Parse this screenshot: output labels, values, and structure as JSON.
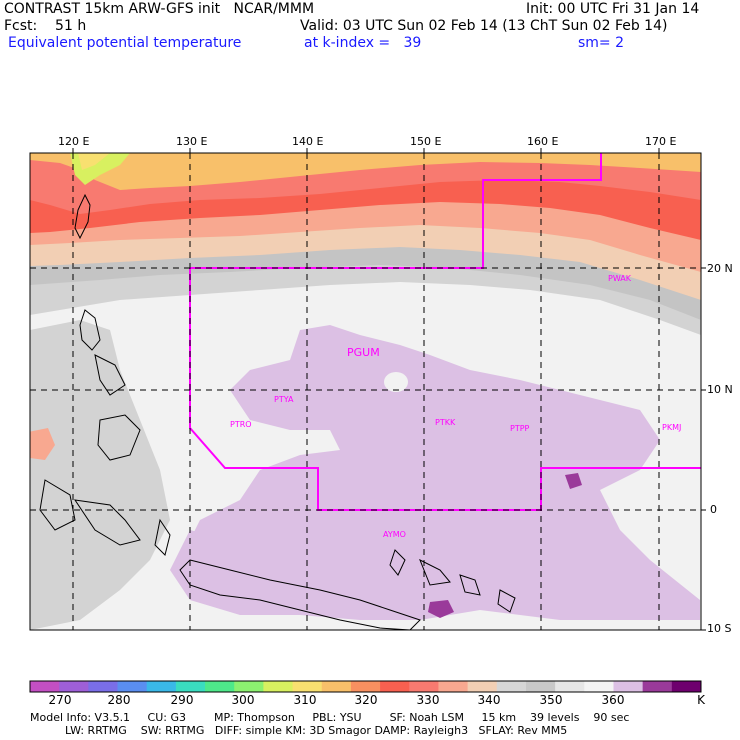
{
  "header": {
    "line1_left": "CONTRAST 15km ARW-GFS init   NCAR/MMM",
    "line1_right": "Init: 00 UTC Fri 31 Jan 14",
    "line2_left": "Fcst:    51 h",
    "line2_right": "Valid: 03 UTC Sun 02 Feb 14 (13 ChT Sun 02 Feb 14)",
    "line3_left": "Equivalent potential temperature",
    "line3_mid": "at k-index =   39",
    "line3_right": "sm= 2"
  },
  "lon_labels": [
    "120 E",
    "130 E",
    "140 E",
    "150 E",
    "160 E",
    "170 E"
  ],
  "lat_labels": [
    "20 N",
    "10 N",
    "0",
    "10 S"
  ],
  "stations": [
    "PGUM",
    "PTYA",
    "PTRO",
    "PTKK",
    "PTPP",
    "PKMJ",
    "PWAK",
    "AYMO"
  ],
  "colorbar": {
    "labels": [
      "270",
      "280",
      "290",
      "300",
      "310",
      "320",
      "330",
      "340",
      "350",
      "360"
    ],
    "unit": "K",
    "colors": [
      "#c34fc3",
      "#9e5fd8",
      "#7a6ee8",
      "#5a8ef0",
      "#3ab8e8",
      "#3adcc0",
      "#4ee88a",
      "#8cf070",
      "#d8f060",
      "#f8e070",
      "#f8c06a",
      "#f89060",
      "#f86050",
      "#f87a70",
      "#f8a890",
      "#f2cfb4",
      "#d6d6d6",
      "#c8c8c8",
      "#e6e6e6",
      "#f4f4f4",
      "#dcc0e4",
      "#9a3a9a",
      "#6e006e"
    ],
    "level_colors": {
      "ocean_low": "#f2f2f2",
      "band_warm": "#f86050",
      "tropical": "#dcc0e4"
    }
  },
  "footer": {
    "line1": "Model Info: V3.5.1     CU: G3        MP: Thompson     PBL: YSU        SF: Noah LSM     15 km    39 levels    90 sec",
    "line2": "LW: RRTMG    SW: RRTMG   DIFF: simple KM: 3D Smagor DAMP: Rayleigh3   SFLAY: Rev MM5"
  }
}
